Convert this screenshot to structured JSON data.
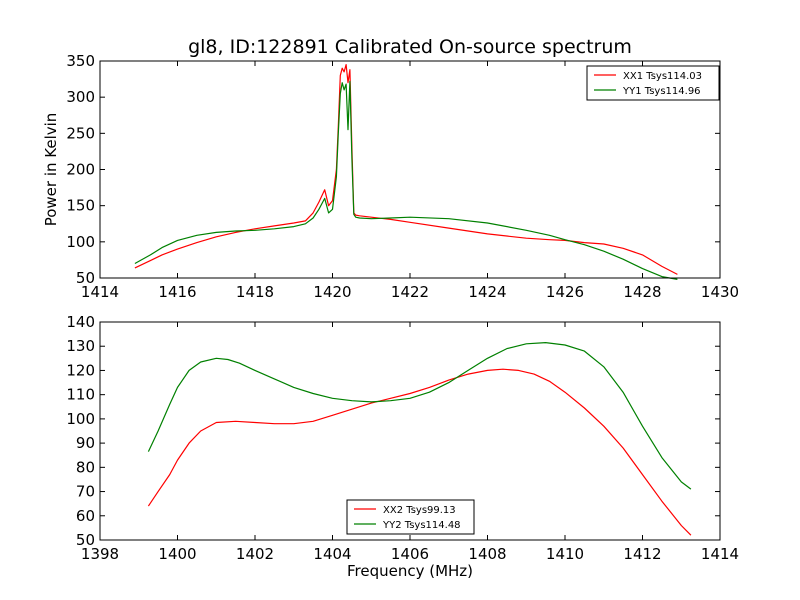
{
  "title": "gl8, ID:122891 Calibrated On-source spectrum",
  "chart_data": [
    {
      "type": "line",
      "ylabel": "Power in Kelvin",
      "xlabel": "",
      "xlim": [
        1414,
        1430
      ],
      "ylim": [
        50,
        350
      ],
      "xticks": [
        1414,
        1416,
        1418,
        1420,
        1422,
        1424,
        1426,
        1428,
        1430
      ],
      "yticks": [
        50,
        100,
        150,
        200,
        250,
        300,
        350
      ],
      "legend_position": "top-right",
      "series": [
        {
          "name": "XX1 Tsys114.03",
          "color": "#ff0000",
          "x": [
            1414.9,
            1415.3,
            1415.6,
            1416.0,
            1416.5,
            1417.0,
            1417.5,
            1418.0,
            1418.5,
            1419.0,
            1419.3,
            1419.5,
            1419.65,
            1419.8,
            1419.9,
            1420.0,
            1420.1,
            1420.15,
            1420.2,
            1420.25,
            1420.3,
            1420.35,
            1420.4,
            1420.45,
            1420.5,
            1420.55,
            1420.6,
            1420.7,
            1421.0,
            1421.5,
            1422.0,
            1423.0,
            1424.0,
            1425.0,
            1425.6,
            1426.0,
            1426.5,
            1427.0,
            1427.5,
            1428.0,
            1428.5,
            1428.9
          ],
          "values": [
            64,
            74,
            82,
            90,
            99,
            107,
            113,
            118,
            122,
            126,
            129,
            140,
            155,
            172,
            150,
            157,
            200,
            260,
            330,
            340,
            335,
            345,
            320,
            338,
            230,
            140,
            137,
            136,
            134,
            131,
            127,
            119,
            111,
            105,
            103,
            102,
            99,
            97,
            91,
            82,
            66,
            55
          ]
        },
        {
          "name": "YY1 Tsys114.96",
          "color": "#008000",
          "x": [
            1414.9,
            1415.3,
            1415.6,
            1416.0,
            1416.5,
            1417.0,
            1417.5,
            1418.0,
            1418.5,
            1419.0,
            1419.3,
            1419.5,
            1419.65,
            1419.8,
            1419.9,
            1420.0,
            1420.1,
            1420.15,
            1420.2,
            1420.25,
            1420.3,
            1420.35,
            1420.4,
            1420.45,
            1420.5,
            1420.55,
            1420.6,
            1420.7,
            1421.0,
            1421.5,
            1422.0,
            1423.0,
            1424.0,
            1425.0,
            1425.6,
            1426.0,
            1426.5,
            1427.0,
            1427.5,
            1428.0,
            1428.5,
            1428.9
          ],
          "values": [
            70,
            82,
            92,
            102,
            109,
            113,
            115,
            116,
            118,
            121,
            125,
            133,
            145,
            160,
            140,
            145,
            190,
            250,
            305,
            320,
            310,
            318,
            255,
            322,
            215,
            138,
            134,
            133,
            132,
            133,
            134,
            132,
            126,
            116,
            109,
            103,
            96,
            87,
            76,
            63,
            52,
            48
          ]
        }
      ]
    },
    {
      "type": "line",
      "xlabel": "Frequency (MHz)",
      "ylabel": "",
      "xlim": [
        1398,
        1414
      ],
      "ylim": [
        50,
        140
      ],
      "xticks": [
        1398,
        1400,
        1402,
        1404,
        1406,
        1408,
        1410,
        1412,
        1414
      ],
      "yticks": [
        50,
        60,
        70,
        80,
        90,
        100,
        110,
        120,
        130,
        140
      ],
      "legend_position": "bottom-center",
      "series": [
        {
          "name": "XX2 Tsys99.13",
          "color": "#ff0000",
          "x": [
            1399.25,
            1399.5,
            1399.8,
            1400.0,
            1400.3,
            1400.6,
            1401.0,
            1401.5,
            1402.0,
            1402.5,
            1403.0,
            1403.5,
            1404.0,
            1404.5,
            1405.0,
            1405.5,
            1406.0,
            1406.5,
            1407.0,
            1407.5,
            1408.0,
            1408.4,
            1408.8,
            1409.2,
            1409.6,
            1410.0,
            1410.5,
            1411.0,
            1411.5,
            1412.0,
            1412.5,
            1413.0,
            1413.25
          ],
          "values": [
            64,
            70,
            77,
            83,
            90,
            95,
            98.5,
            99,
            98.5,
            98,
            98,
            99,
            101.5,
            104,
            106.5,
            108.5,
            110.5,
            113,
            116,
            118.5,
            120,
            120.5,
            120,
            118.5,
            115.5,
            111,
            104.5,
            97,
            88,
            77,
            66,
            56,
            52
          ]
        },
        {
          "name": "YY2 Tsys114.48",
          "color": "#008000",
          "x": [
            1399.25,
            1399.5,
            1399.8,
            1400.0,
            1400.3,
            1400.6,
            1401.0,
            1401.3,
            1401.6,
            1402.0,
            1402.5,
            1403.0,
            1403.5,
            1404.0,
            1404.5,
            1405.0,
            1405.5,
            1406.0,
            1406.5,
            1407.0,
            1407.5,
            1408.0,
            1408.5,
            1409.0,
            1409.5,
            1410.0,
            1410.5,
            1411.0,
            1411.5,
            1412.0,
            1412.5,
            1413.0,
            1413.25
          ],
          "values": [
            86.5,
            95,
            106,
            113,
            120,
            123.5,
            125,
            124.5,
            123,
            120,
            116.5,
            113,
            110.5,
            108.5,
            107.5,
            107,
            107.5,
            108.5,
            111,
            115,
            120,
            125,
            129,
            131,
            131.5,
            130.5,
            128,
            121.5,
            111,
            97,
            84,
            74,
            71
          ]
        }
      ]
    }
  ]
}
